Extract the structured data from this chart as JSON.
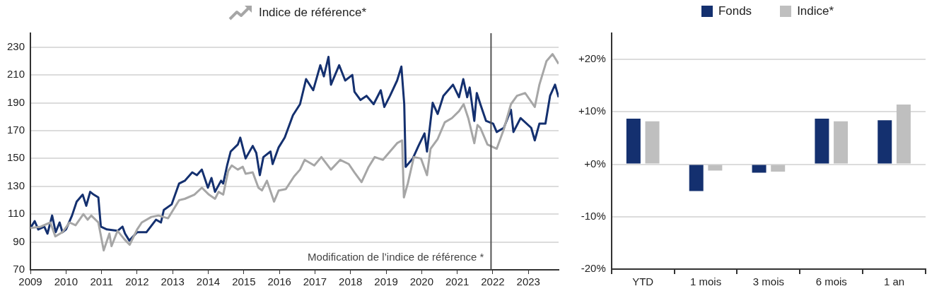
{
  "chart_data": [
    {
      "type": "line",
      "x": [
        2009,
        2009.12,
        2009.22,
        2009.39,
        2009.48,
        2009.61,
        2009.71,
        2009.82,
        2009.9,
        2010,
        2010.17,
        2010.3,
        2010.47,
        2010.57,
        2010.68,
        2010.78,
        2010.91,
        2010.98,
        2011.15,
        2011.45,
        2011.59,
        2011.66,
        2011.78,
        2012,
        2012.26,
        2012.53,
        2012.67,
        2012.75,
        2012.97,
        2013.18,
        2013.34,
        2013.55,
        2013.68,
        2013.82,
        2013.99,
        2014.09,
        2014.19,
        2014.36,
        2014.42,
        2014.53,
        2014.63,
        2014.83,
        2014.9,
        2015.05,
        2015.25,
        2015.35,
        2015.45,
        2015.55,
        2015.75,
        2015.81,
        2015.98,
        2016.15,
        2016.28,
        2016.38,
        2016.58,
        2016.75,
        2016.95,
        2017.15,
        2017.25,
        2017.38,
        2017.45,
        2017.68,
        2017.85,
        2018.05,
        2018.11,
        2018.28,
        2018.45,
        2018.65,
        2018.85,
        2018.95,
        2019.11,
        2019.31,
        2019.43,
        2019.51,
        2019.55,
        2019.75,
        2019.91,
        2020.08,
        2020.15,
        2020.31,
        2020.45,
        2020.61,
        2020.88,
        2021.05,
        2021.17,
        2021.28,
        2021.35,
        2021.48,
        2021.55,
        2021.65,
        2021.81,
        2022.01,
        2022.11,
        2022.31,
        2022.51,
        2022.58,
        2022.78,
        2023.08,
        2023.18,
        2023.31,
        2023.48,
        2023.61,
        2023.75,
        2023.85
      ],
      "series": [
        {
          "color": "#14306f",
          "values": [
            100,
            105,
            99,
            101,
            96,
            109,
            97,
            104,
            97,
            99,
            109,
            119,
            124,
            116,
            126,
            124,
            122,
            101,
            99,
            98,
            101,
            96,
            91,
            97,
            97,
            106,
            104,
            113,
            117,
            132,
            134,
            140,
            138,
            142,
            129,
            136,
            126,
            134,
            132,
            145,
            155,
            160,
            165,
            150,
            159,
            154,
            138,
            151,
            155,
            146,
            158,
            165,
            174,
            181,
            189,
            207,
            199,
            217,
            209,
            223,
            203,
            217,
            206,
            210,
            198,
            192,
            195,
            189,
            199,
            187,
            195,
            206,
            216,
            189,
            144,
            150,
            159,
            168,
            155,
            190,
            182,
            195,
            203,
            194,
            207,
            194,
            201,
            177,
            197,
            189,
            177,
            175,
            169,
            172,
            185,
            169,
            179,
            172,
            163,
            175,
            175,
            195,
            203,
            194
          ]
        },
        {
          "name": "Indice de référence*",
          "color": "#a6a6a6",
          "x": [
            2009,
            2009.29,
            2009.56,
            2009.7,
            2009.9,
            2010.1,
            2010.27,
            2010.49,
            2010.61,
            2010.71,
            2010.91,
            2011.06,
            2011.22,
            2011.28,
            2011.45,
            2011.64,
            2011.79,
            2012,
            2012.13,
            2012.4,
            2012.6,
            2012.87,
            2013.18,
            2013.34,
            2013.61,
            2013.82,
            2014.02,
            2014.19,
            2014.29,
            2014.42,
            2014.56,
            2014.66,
            2014.83,
            2014.97,
            2015.05,
            2015.25,
            2015.41,
            2015.51,
            2015.65,
            2015.85,
            2015.98,
            2016.18,
            2016.41,
            2016.58,
            2016.71,
            2016.98,
            2017.18,
            2017.45,
            2017.71,
            2017.95,
            2018.11,
            2018.31,
            2018.51,
            2018.68,
            2018.91,
            2019.11,
            2019.31,
            2019.45,
            2019.5,
            2019.61,
            2019.78,
            2019.98,
            2020.15,
            2020.25,
            2020.45,
            2020.65,
            2020.85,
            2021.05,
            2021.18,
            2021.31,
            2021.48,
            2021.57,
            2021.65,
            2021.85,
            2022.11,
            2022.31,
            2022.51,
            2022.68,
            2022.91,
            2023.18,
            2023.31,
            2023.51,
            2023.68,
            2023.85
          ],
          "values": [
            100,
            101,
            104,
            94,
            97,
            104,
            102,
            110,
            106,
            109,
            104,
            84,
            96,
            87,
            98,
            92,
            88,
            99,
            104,
            108,
            109,
            107,
            120,
            121,
            124,
            129,
            124,
            121,
            126,
            124,
            141,
            145,
            142,
            144,
            139,
            140,
            129,
            127,
            134,
            119,
            127,
            128,
            137,
            142,
            149,
            145,
            151,
            142,
            149,
            146,
            140,
            133,
            144,
            151,
            149,
            155,
            161,
            163,
            122,
            132,
            151,
            150,
            138,
            157,
            164,
            176,
            179,
            184,
            189,
            179,
            161,
            174,
            172,
            160,
            157,
            171,
            189,
            195,
            197,
            187,
            203,
            220,
            225,
            218
          ]
        }
      ],
      "xlim": [
        2009,
        2023.85
      ],
      "xticks": [
        2009,
        2010,
        2011,
        2012,
        2013,
        2014,
        2015,
        2016,
        2017,
        2018,
        2019,
        2020,
        2021,
        2022,
        2023
      ],
      "ylim": [
        70,
        240
      ],
      "yticks": [
        70,
        90,
        110,
        130,
        150,
        170,
        190,
        210,
        230
      ],
      "grid": "y",
      "legend": "top",
      "marker": "none",
      "line_style": "solid",
      "ref_lines": [
        {
          "axis": "x",
          "value": 2021.95,
          "label": "Modification de l’indice de référence *",
          "color": "#555555"
        }
      ]
    },
    {
      "type": "bar",
      "categories": [
        "YTD",
        "1 mois",
        "3 mois",
        "6 mois",
        "1 an"
      ],
      "series": [
        {
          "name": "Fonds",
          "color": "#14306f",
          "values": [
            8.7,
            -5.1,
            -1.6,
            8.7,
            8.4
          ]
        },
        {
          "name": "Indice*",
          "color": "#bfbfbf",
          "values": [
            8.2,
            -1.2,
            -1.4,
            8.2,
            11.4
          ]
        }
      ],
      "ylim": [
        -20,
        25
      ],
      "yticks": [
        {
          "value": -20,
          "label": "-20%"
        },
        {
          "value": -10,
          "label": "-10%"
        },
        {
          "value": 0,
          "label": "+0%"
        },
        {
          "value": 10,
          "label": "+10%"
        },
        {
          "value": 20,
          "label": "+20%"
        }
      ],
      "grid": "y",
      "legend": "top"
    }
  ]
}
